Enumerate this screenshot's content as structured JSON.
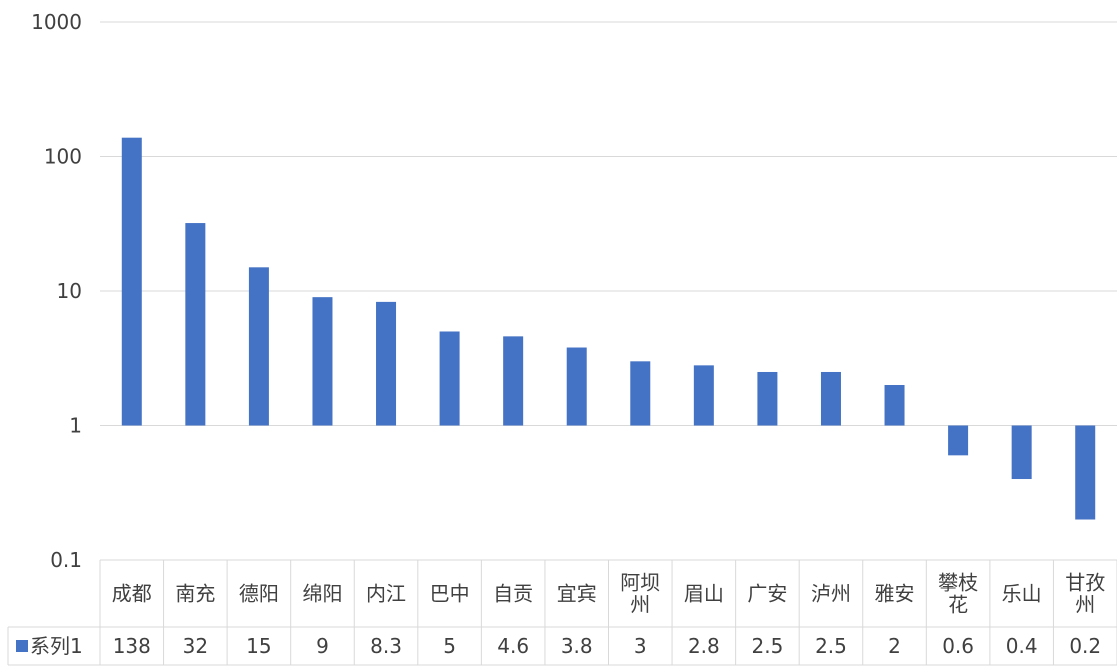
{
  "chart_data": {
    "type": "bar",
    "title": "",
    "xlabel": "",
    "ylabel": "",
    "y_scale": "log",
    "ylim": [
      0.1,
      1000
    ],
    "grid": true,
    "legend": "data-table",
    "bar_baseline": 1,
    "y_ticks": [
      {
        "value": 0.1,
        "label": "0.1"
      },
      {
        "value": 1,
        "label": "1"
      },
      {
        "value": 10,
        "label": "10"
      },
      {
        "value": 100,
        "label": "100"
      },
      {
        "value": 1000,
        "label": "1000"
      }
    ],
    "categories": [
      [
        "成都"
      ],
      [
        "南充"
      ],
      [
        "德阳"
      ],
      [
        "绵阳"
      ],
      [
        "内江"
      ],
      [
        "巴中"
      ],
      [
        "自贡"
      ],
      [
        "宜宾"
      ],
      [
        "阿坝",
        "州"
      ],
      [
        "眉山"
      ],
      [
        "广安"
      ],
      [
        "泸州"
      ],
      [
        "雅安"
      ],
      [
        "攀枝",
        "花"
      ],
      [
        "乐山"
      ],
      [
        "甘孜",
        "州"
      ]
    ],
    "series": [
      {
        "name": "系列1",
        "color": "#4472c4",
        "values": [
          138,
          32,
          15,
          9,
          8.3,
          5,
          4.6,
          3.8,
          3,
          2.8,
          2.5,
          2.5,
          2,
          0.6,
          0.4,
          0.2
        ],
        "labels": [
          "138",
          "32",
          "15",
          "9",
          "8.3",
          "5",
          "4.6",
          "3.8",
          "3",
          "2.8",
          "2.5",
          "2.5",
          "2",
          "0.6",
          "0.4",
          "0.2"
        ]
      }
    ]
  }
}
